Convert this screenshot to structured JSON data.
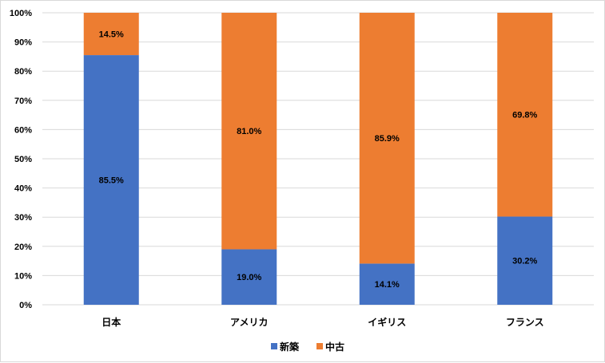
{
  "chart_data": {
    "type": "bar",
    "stacked": true,
    "percent": true,
    "categories": [
      "日本",
      "アメリカ",
      "イギリス",
      "フランス"
    ],
    "series": [
      {
        "name": "新築",
        "color": "#4472c4",
        "values": [
          85.5,
          19.0,
          14.1,
          30.2
        ],
        "labels": [
          "85.5%",
          "19.0%",
          "14.1%",
          "30.2%"
        ]
      },
      {
        "name": "中古",
        "color": "#ed7d31",
        "values": [
          14.5,
          81.0,
          85.9,
          69.8
        ],
        "labels": [
          "14.5%",
          "81.0%",
          "85.9%",
          "69.8%"
        ]
      }
    ],
    "ylim": [
      0,
      100
    ],
    "yticks": [
      "0%",
      "10%",
      "20%",
      "30%",
      "40%",
      "50%",
      "60%",
      "70%",
      "80%",
      "90%",
      "100%"
    ],
    "grid": true,
    "legend": "bottom-center",
    "title": "",
    "xlabel": "",
    "ylabel": ""
  }
}
